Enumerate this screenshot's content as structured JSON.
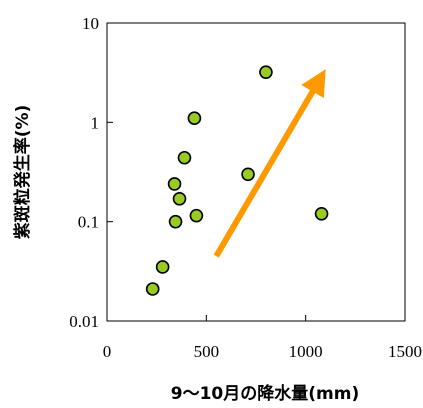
{
  "chart_data": {
    "type": "scatter",
    "xlabel": "9～10月の降水量(mm)",
    "ylabel": "紫斑粒発生率(%)",
    "xlim": [
      0,
      1500
    ],
    "ylim": [
      0.01,
      10
    ],
    "yscale": "log",
    "x_ticks": [
      "0",
      "500",
      "1000",
      "1500"
    ],
    "y_ticks": [
      "0.01",
      "0.1",
      "1",
      "10"
    ],
    "grid": false,
    "legend": "none",
    "marker_color": "#99cc22",
    "marker_edge_color": "#000000",
    "arrow_color": "#ff9900",
    "points": [
      {
        "x": 230,
        "y": 0.021
      },
      {
        "x": 280,
        "y": 0.035
      },
      {
        "x": 340,
        "y": 0.24
      },
      {
        "x": 345,
        "y": 0.1
      },
      {
        "x": 365,
        "y": 0.17
      },
      {
        "x": 390,
        "y": 0.44
      },
      {
        "x": 440,
        "y": 1.1
      },
      {
        "x": 450,
        "y": 0.115
      },
      {
        "x": 710,
        "y": 0.3
      },
      {
        "x": 800,
        "y": 3.2
      },
      {
        "x": 1080,
        "y": 0.12
      }
    ],
    "arrow": {
      "from": {
        "x": 550,
        "y": 0.045
      },
      "to": {
        "x": 1050,
        "y": 2.3
      }
    }
  }
}
